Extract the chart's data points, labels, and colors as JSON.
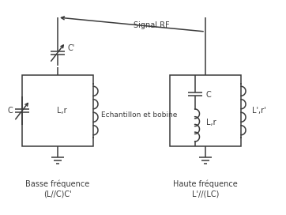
{
  "bg_color": "#ffffff",
  "line_color": "#3a3a3a",
  "text_color": "#3a3a3a",
  "signal_rf_label": "Signal RF",
  "label_left_line1": "Basse fréquence",
  "label_left_line2": "(L//C)C'",
  "label_right_line1": "Haute fréquence",
  "label_right_line2": "L'//(LC)",
  "label_Lr_left": "L,r",
  "label_Lr_right": "L,r",
  "label_Lr2": "L',r'",
  "label_C_right": "C",
  "label_Cprime": "C'",
  "label_C_left": "C",
  "mid_label": "Echantillon et bobine",
  "figsize": [
    3.62,
    2.72
  ],
  "dpi": 100,
  "lw": 1.1
}
